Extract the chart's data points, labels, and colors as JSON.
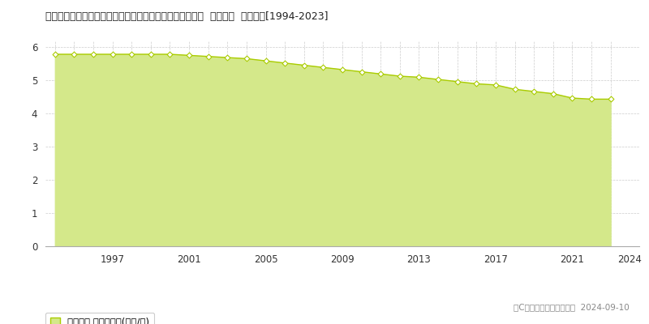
{
  "title": "宮崎県西臼杵郡高千穂町大字三田井字宮ノ前１５９８番２  地価公示  地価推移[1994-2023]",
  "years": [
    1994,
    1995,
    1996,
    1997,
    1998,
    1999,
    2000,
    2001,
    2002,
    2003,
    2004,
    2005,
    2006,
    2007,
    2008,
    2009,
    2010,
    2011,
    2012,
    2013,
    2014,
    2015,
    2016,
    2017,
    2018,
    2019,
    2020,
    2021,
    2022,
    2023
  ],
  "values": [
    5.785,
    5.785,
    5.785,
    5.785,
    5.785,
    5.785,
    5.785,
    5.752,
    5.719,
    5.686,
    5.653,
    5.587,
    5.521,
    5.455,
    5.389,
    5.323,
    5.258,
    5.192,
    5.126,
    5.093,
    5.027,
    4.961,
    4.895,
    4.862,
    4.73,
    4.664,
    4.598,
    4.466,
    4.433,
    4.433
  ],
  "line_color": "#aacc00",
  "fill_color": "#d4e88a",
  "marker_face": "#ffffff",
  "marker_edge": "#aacc00",
  "background_color": "#ffffff",
  "plot_bg_color": "#ffffff",
  "grid_color": "#cccccc",
  "legend_label": "地価公示 平均坪単価(万円/坪)",
  "copyright_text": "（C）土地価格ドットコム  2024-09-10",
  "yticks": [
    0,
    1,
    2,
    3,
    4,
    5,
    6
  ],
  "ylim": [
    0,
    6.2
  ],
  "xlim": [
    1993.5,
    2024.5
  ],
  "xticks": [
    1997,
    2001,
    2005,
    2009,
    2013,
    2017,
    2021,
    2024
  ]
}
